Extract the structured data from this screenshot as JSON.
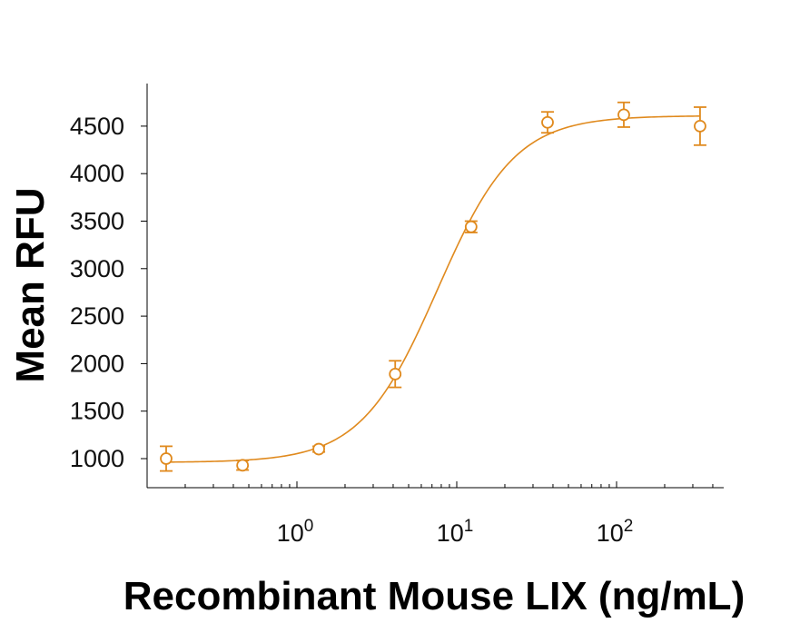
{
  "chart_data": {
    "type": "scatter",
    "title": "",
    "xlabel": "Recombinant Mouse LIX (ng/mL)",
    "ylabel": "Mean RFU",
    "x_scale": "log",
    "xlim": [
      0.12,
      420
    ],
    "ylim": [
      700,
      4950
    ],
    "y_ticks": [
      1000,
      1500,
      2000,
      2500,
      3000,
      3500,
      4000,
      4500
    ],
    "y_tick_labels": [
      "1000",
      "1500",
      "2000",
      "2500",
      "3000",
      "3500",
      "4000",
      "4500"
    ],
    "x_major_ticks": [
      1,
      10,
      100
    ],
    "x_tick_labels": [
      {
        "base": "10",
        "exp": "0"
      },
      {
        "base": "10",
        "exp": "1"
      },
      {
        "base": "10",
        "exp": "2"
      }
    ],
    "grid": false,
    "color": "#E08A1E",
    "series": [
      {
        "points": [
          {
            "x": 0.152,
            "y": 1000,
            "err": 130
          },
          {
            "x": 0.457,
            "y": 930,
            "err": 50
          },
          {
            "x": 1.37,
            "y": 1100,
            "err": 30
          },
          {
            "x": 4.12,
            "y": 1890,
            "err": 140
          },
          {
            "x": 12.3,
            "y": 3440,
            "err": 60
          },
          {
            "x": 37.0,
            "y": 4540,
            "err": 110
          },
          {
            "x": 111,
            "y": 4620,
            "err": 130
          },
          {
            "x": 333,
            "y": 4500,
            "err": 200
          }
        ]
      }
    ],
    "fit": {
      "model": "4PL",
      "bottom": 960,
      "top": 4610,
      "ec50": 7.6,
      "hill": 1.8
    }
  }
}
